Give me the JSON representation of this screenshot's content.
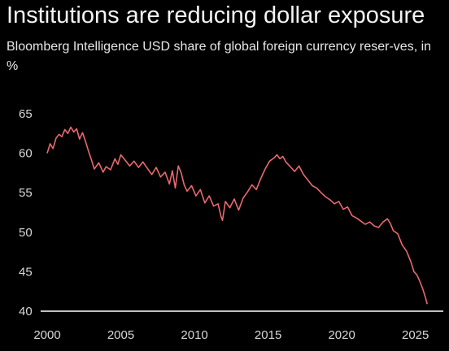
{
  "chart_data": {
    "type": "line",
    "title": "Institutions are reducing dollar exposure",
    "subtitle": "Bloomberg Intelligence USD share of global foreign currency reser-ves, in %",
    "xlabel": "",
    "ylabel": "",
    "xlim": [
      2000,
      2025.9
    ],
    "ylim": [
      40,
      65
    ],
    "x_ticks": [
      "2000",
      "2005",
      "2010",
      "2015",
      "2020",
      "2025"
    ],
    "y_ticks": [
      "40",
      "45",
      "50",
      "55",
      "60",
      "65"
    ],
    "grid": false,
    "line_color": "#e8696f",
    "axis_color": "#ffffff",
    "series": [
      {
        "x": [
          2000.0,
          2000.2,
          2000.4,
          2000.6,
          2000.8,
          2001.0,
          2001.2,
          2001.4,
          2001.6,
          2001.8,
          2002.0,
          2002.2,
          2002.4,
          2002.6,
          2002.8,
          2003.0,
          2003.2,
          2003.5,
          2003.8,
          2004.0,
          2004.3,
          2004.6,
          2004.8,
          2005.0,
          2005.3,
          2005.6,
          2005.9,
          2006.2,
          2006.5,
          2006.8,
          2007.1,
          2007.4,
          2007.7,
          2008.0,
          2008.3,
          2008.5,
          2008.7,
          2008.9,
          2009.1,
          2009.3,
          2009.5,
          2009.8,
          2010.1,
          2010.4,
          2010.7,
          2011.0,
          2011.3,
          2011.6,
          2011.8,
          2011.9,
          2012.1,
          2012.4,
          2012.7,
          2013.0,
          2013.3,
          2013.6,
          2013.9,
          2014.2,
          2014.5,
          2014.8,
          2015.1,
          2015.4,
          2015.6,
          2015.8,
          2016.0,
          2016.2,
          2016.5,
          2016.8,
          2017.1,
          2017.4,
          2017.7,
          2018.0,
          2018.3,
          2018.6,
          2018.9,
          2019.2,
          2019.5,
          2019.8,
          2020.1,
          2020.4,
          2020.7,
          2021.0,
          2021.3,
          2021.6,
          2021.9,
          2022.2,
          2022.5,
          2022.8,
          2023.1,
          2023.3,
          2023.5,
          2023.8,
          2024.1,
          2024.4,
          2024.7,
          2024.9,
          2025.1,
          2025.3,
          2025.5,
          2025.7,
          2025.8
        ],
        "y": [
          60.0,
          61.2,
          60.6,
          61.9,
          62.4,
          62.1,
          63.0,
          62.5,
          63.3,
          62.7,
          63.1,
          61.8,
          62.6,
          61.5,
          60.3,
          59.2,
          58.0,
          58.8,
          57.6,
          58.3,
          57.9,
          59.3,
          58.6,
          59.8,
          59.1,
          58.4,
          59.0,
          58.2,
          58.9,
          58.1,
          57.3,
          58.2,
          57.0,
          57.6,
          56.1,
          57.8,
          55.6,
          58.4,
          57.5,
          56.0,
          55.2,
          55.9,
          54.6,
          55.4,
          53.7,
          54.6,
          53.3,
          53.6,
          52.0,
          51.5,
          53.9,
          53.1,
          54.2,
          52.8,
          54.3,
          55.1,
          56.0,
          55.4,
          56.8,
          58.0,
          59.0,
          59.4,
          59.8,
          59.3,
          59.6,
          58.9,
          58.3,
          57.7,
          58.4,
          57.3,
          56.6,
          55.9,
          55.6,
          55.0,
          54.5,
          54.1,
          53.6,
          53.9,
          52.9,
          53.2,
          52.1,
          51.8,
          51.4,
          51.0,
          51.3,
          50.8,
          50.6,
          51.3,
          51.7,
          51.1,
          50.2,
          49.8,
          48.4,
          47.6,
          46.2,
          45.0,
          44.6,
          43.8,
          42.8,
          41.6,
          40.9
        ]
      }
    ]
  }
}
